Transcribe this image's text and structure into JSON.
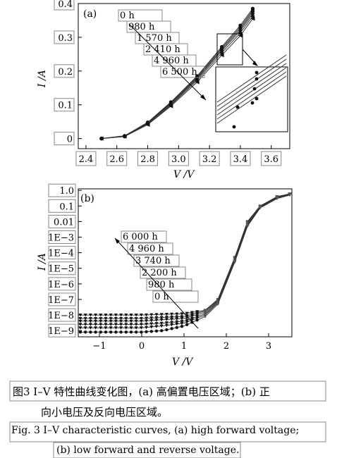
{
  "figure": {
    "caption_zh_line1": "图3  I–V 特性曲线变化图，(a) 高偏置电压区域；(b) 正",
    "caption_zh_line2": "向小电压及反向电压区域。",
    "caption_en_line1": "Fig. 3  I–V characteristic curves, (a) high forward voltage;",
    "caption_en_line2": "(b) low forward and reverse voltage."
  },
  "chart_data": [
    {
      "panel": "(a)",
      "type": "line",
      "xlabel": "V /V",
      "ylabel": "I /A",
      "xlim": [
        2.35,
        3.72
      ],
      "ylim": [
        -0.03,
        0.4
      ],
      "xticks": [
        2.4,
        2.6,
        2.8,
        3.0,
        3.2,
        3.4,
        3.6
      ],
      "xtick_labels": [
        "2.4",
        "2.6",
        "2.8",
        "3.0",
        "3.2",
        "3.4",
        "3.6"
      ],
      "yticks": [
        0,
        0.1,
        0.2,
        0.3,
        0.4
      ],
      "ytick_labels": [
        "0",
        "0.1",
        "0.2",
        "0.3",
        "0.4"
      ],
      "grid": false,
      "legend_placement": "top-center, stacked with arrow",
      "series": [
        {
          "name": "0 h",
          "x": [
            2.5,
            2.65,
            2.8,
            2.95,
            3.12,
            3.28,
            3.4,
            3.48
          ],
          "y": [
            0.0,
            0.008,
            0.048,
            0.108,
            0.185,
            0.272,
            0.335,
            0.385
          ]
        },
        {
          "name": "980 h",
          "x": [
            2.5,
            2.65,
            2.8,
            2.95,
            3.12,
            3.28,
            3.4,
            3.48
          ],
          "y": [
            0.0,
            0.008,
            0.047,
            0.106,
            0.182,
            0.268,
            0.33,
            0.38
          ]
        },
        {
          "name": "1 570 h",
          "x": [
            2.5,
            2.65,
            2.8,
            2.95,
            3.12,
            3.28,
            3.4,
            3.48
          ],
          "y": [
            0.0,
            0.007,
            0.046,
            0.104,
            0.179,
            0.264,
            0.325,
            0.375
          ]
        },
        {
          "name": "2 410 h",
          "x": [
            2.5,
            2.65,
            2.8,
            2.95,
            3.12,
            3.28,
            3.4,
            3.48
          ],
          "y": [
            0.0,
            0.007,
            0.045,
            0.102,
            0.176,
            0.26,
            0.32,
            0.37
          ]
        },
        {
          "name": "4 960 h",
          "x": [
            2.5,
            2.65,
            2.8,
            2.95,
            3.12,
            3.28,
            3.4,
            3.48
          ],
          "y": [
            0.0,
            0.006,
            0.043,
            0.099,
            0.172,
            0.254,
            0.313,
            0.363
          ]
        },
        {
          "name": "6 500 h",
          "x": [
            2.5,
            2.65,
            2.8,
            2.95,
            3.12,
            3.28,
            3.4,
            3.48
          ],
          "y": [
            0.0,
            0.006,
            0.041,
            0.096,
            0.167,
            0.247,
            0.305,
            0.355
          ]
        }
      ]
    },
    {
      "panel": "(b)",
      "type": "line",
      "xlabel": "V /V",
      "ylabel": "I /A",
      "log_y": true,
      "xlim": [
        -1.5,
        3.55
      ],
      "ylim_exp": [
        -9.4,
        0.1
      ],
      "xticks": [
        -1,
        0,
        1,
        2,
        3
      ],
      "xtick_labels": [
        "−1",
        "0",
        "1",
        "2",
        "3"
      ],
      "ytick_labels": [
        "1.0",
        "0.1",
        "0.01",
        "1E−3",
        "1E−4",
        "1E−5",
        "1E−6",
        "1E−7",
        "1E−8",
        "1E−9"
      ],
      "grid": false,
      "legend_placement": "center-left, stacked with arrow",
      "series": [
        {
          "name": "6 000 h",
          "x": [
            -1.5,
            -0.5,
            0.0,
            0.5,
            1.0,
            1.5,
            1.8,
            2.2,
            2.5,
            2.8,
            3.2,
            3.5
          ],
          "y": [
            1e-08,
            1e-08,
            1e-08,
            1.1e-08,
            1.2e-08,
            2e-08,
            1e-07,
            5e-05,
            0.01,
            0.1,
            0.4,
            0.6
          ]
        },
        {
          "name": "4 960 h",
          "x": [
            -1.5,
            -0.5,
            0.0,
            0.5,
            1.0,
            1.5,
            1.8,
            2.2,
            2.5,
            2.8,
            3.2,
            3.5
          ],
          "y": [
            6e-09,
            6e-09,
            6e-09,
            7e-09,
            8e-09,
            1.8e-08,
            9e-08,
            4.5e-05,
            0.009,
            0.095,
            0.38,
            0.58
          ]
        },
        {
          "name": "3 740 h",
          "x": [
            -1.5,
            -0.5,
            0.0,
            0.5,
            1.0,
            1.5,
            1.8,
            2.2,
            2.5,
            2.8,
            3.2,
            3.5
          ],
          "y": [
            4e-09,
            4e-09,
            4e-09,
            5e-09,
            6e-09,
            1.5e-08,
            8e-08,
            4e-05,
            0.008,
            0.09,
            0.36,
            0.56
          ]
        },
        {
          "name": "2 200 h",
          "x": [
            -1.5,
            -0.5,
            0.0,
            0.5,
            1.0,
            1.5,
            1.8,
            2.2,
            2.5,
            2.8,
            3.2,
            3.5
          ],
          "y": [
            2.5e-09,
            2.5e-09,
            2.5e-09,
            3e-09,
            4e-09,
            1.2e-08,
            7e-08,
            3.5e-05,
            0.007,
            0.085,
            0.34,
            0.54
          ]
        },
        {
          "name": "980 h",
          "x": [
            -1.5,
            -0.5,
            0.0,
            0.5,
            1.0,
            1.5,
            1.8,
            2.2,
            2.5,
            2.8,
            3.2,
            3.5
          ],
          "y": [
            1.5e-09,
            1.5e-09,
            1.5e-09,
            2e-09,
            3e-09,
            1e-08,
            6e-08,
            3e-05,
            0.006,
            0.08,
            0.32,
            0.52
          ]
        },
        {
          "name": "0 h",
          "x": [
            -1.5,
            -0.5,
            0.0,
            0.5,
            1.0,
            1.5,
            1.8,
            2.2,
            2.5,
            2.8,
            3.2,
            3.5
          ],
          "y": [
            8e-10,
            8e-10,
            8e-10,
            1e-09,
            2e-09,
            8e-09,
            5e-08,
            2.5e-05,
            0.005,
            0.075,
            0.3,
            0.5
          ]
        }
      ]
    }
  ],
  "style": {
    "line_color": "#333333",
    "marker_color": "#111111",
    "box_border": "#888888"
  }
}
